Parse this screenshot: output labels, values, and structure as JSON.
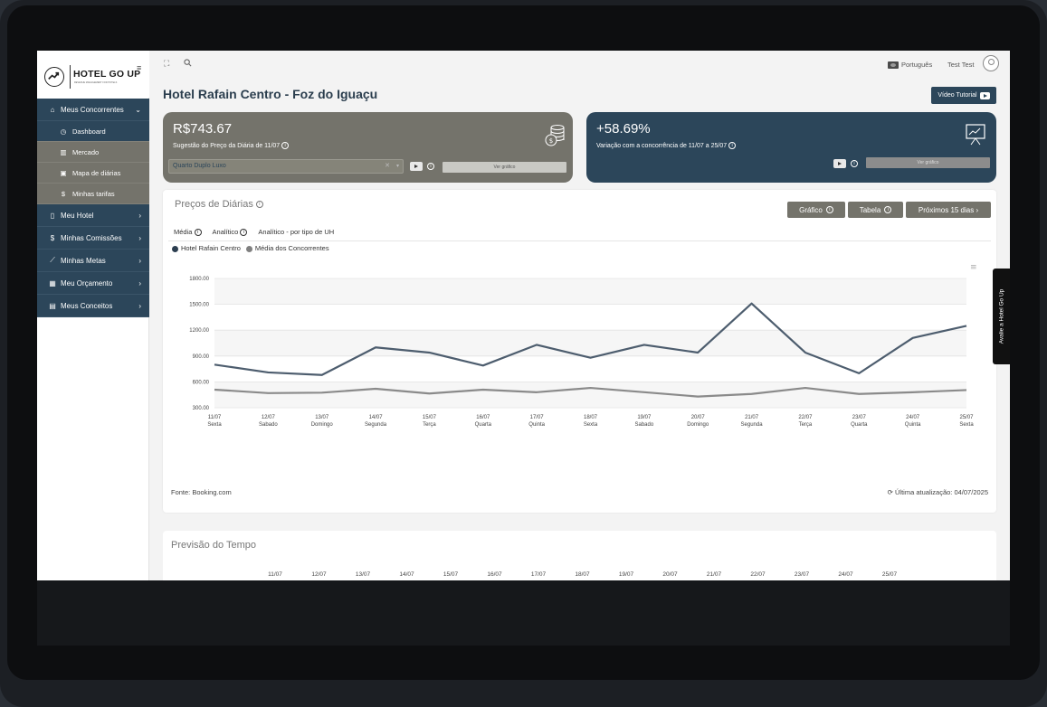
{
  "brand": {
    "name": "HOTEL GO UP",
    "tagline": "REVENUE MANAGEMENT FOR HOTELS"
  },
  "sidebar": {
    "items": [
      {
        "label": "Meus Concorrentes",
        "icon": "home-icon",
        "chevron": "⌄",
        "expanded": true,
        "children": [
          {
            "label": "Dashboard",
            "icon": "clock-icon",
            "active": true
          },
          {
            "label": "Mercado",
            "icon": "bar-chart-icon"
          },
          {
            "label": "Mapa de diárias",
            "icon": "calendar-icon"
          },
          {
            "label": "Minhas tarifas",
            "icon": "dollar-icon"
          }
        ]
      },
      {
        "label": "Meu Hotel",
        "icon": "building-icon",
        "chevron": "›"
      },
      {
        "label": "Minhas Comissões",
        "icon": "dollar-icon",
        "chevron": "›"
      },
      {
        "label": "Minhas Metas",
        "icon": "trend-icon",
        "chevron": "›"
      },
      {
        "label": "Meu Orçamento",
        "icon": "calculator-icon",
        "chevron": "›"
      },
      {
        "label": "Meus Conceitos",
        "icon": "book-icon",
        "chevron": "›"
      }
    ]
  },
  "topbar": {
    "language": "Português",
    "user": "Test Test"
  },
  "page": {
    "title": "Hotel Rafain Centro - Foz do Iguaçu",
    "video_label": "Vídeo Tutorial"
  },
  "card_price": {
    "value": "R$743.67",
    "subtitle": "Sugestão do Preço da Diária de 11/07",
    "room": "Quarto Duplo Luxo",
    "chart_btn": "Ver gráfico"
  },
  "card_variation": {
    "value": "+58.69%",
    "subtitle": "Variação com a concorrência de 11/07 a 25/07",
    "chart_btn": "Ver gráfico"
  },
  "panel": {
    "title": "Preços de Diárias",
    "buttons": {
      "grafico": "Gráfico",
      "tabela": "Tabela",
      "proximos": "Próximos 15 dias ›"
    },
    "tabs": [
      "Média",
      "Analítico",
      "Analítico - por tipo de UH"
    ],
    "source": "Fonte: Booking.com",
    "updated": "Última atualização: 04/07/2025"
  },
  "chart_data": {
    "type": "line",
    "x": [
      "11/07",
      "12/07",
      "13/07",
      "14/07",
      "15/07",
      "16/07",
      "17/07",
      "18/07",
      "19/07",
      "20/07",
      "21/07",
      "22/07",
      "23/07",
      "24/07",
      "25/07"
    ],
    "weekdays": [
      "Sexta",
      "Sabado",
      "Domingo",
      "Segunda",
      "Terça",
      "Quarta",
      "Quinta",
      "Sexta",
      "Sabado",
      "Domingo",
      "Segunda",
      "Terça",
      "Quarta",
      "Quinta",
      "Sexta"
    ],
    "series": [
      {
        "name": "Hotel Rafain Centro",
        "color": "#4d5d6e",
        "values": [
          800,
          710,
          680,
          1000,
          940,
          790,
          1030,
          880,
          1030,
          940,
          1510,
          940,
          700,
          1110,
          1250
        ]
      },
      {
        "name": "Média dos Concorrentes",
        "color": "#8a8a8a",
        "values": [
          510,
          470,
          475,
          520,
          465,
          510,
          480,
          530,
          480,
          430,
          460,
          530,
          460,
          480,
          505
        ]
      }
    ],
    "yticks": [
      "1800.00",
      "1500.00",
      "1200.00",
      "900.00",
      "600.00",
      "300.00"
    ],
    "ylim": [
      300,
      1800
    ],
    "grid": true,
    "legend": "top-left"
  },
  "weather": {
    "title": "Previsão do Tempo",
    "dates": [
      "11/07",
      "12/07",
      "13/07",
      "14/07",
      "15/07",
      "16/07",
      "17/07",
      "18/07",
      "19/07",
      "20/07",
      "21/07",
      "22/07",
      "23/07",
      "24/07",
      "25/07"
    ]
  },
  "side_tab": "Avalie a Hotel Go Up",
  "colors": {
    "navy": "#2c465a",
    "olive": "#74736b"
  }
}
